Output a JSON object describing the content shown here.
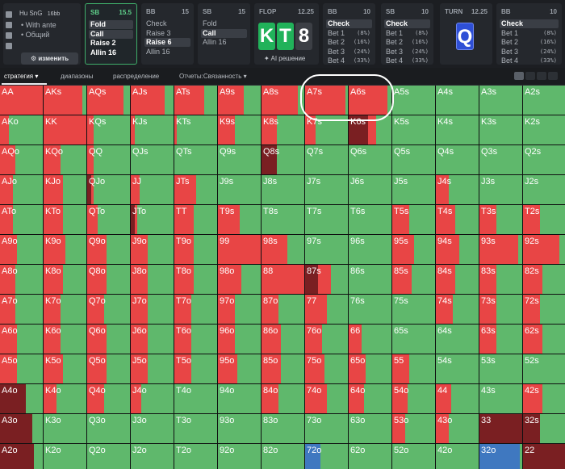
{
  "colors": {
    "raise": "#e84545",
    "call": "#5fb86c",
    "fold": "#7a1f22",
    "check": "#5fb86c",
    "special": "#3f78c0",
    "flop_card_green": "#21b25a",
    "flop_card_gray": "#3c3f45",
    "turn_card_blue": "#2e4fd6",
    "annotation": "#ffffff"
  },
  "info_panel": {
    "title": "Hu SnG",
    "stack": "16bb",
    "lines": [
      "• With ante",
      "• Общий"
    ],
    "change_label": "изменить",
    "icons": [
      "copy-icon",
      "history-icon",
      "save-icon",
      "font-icon"
    ]
  },
  "action_panels": [
    {
      "pos": "SB",
      "stack": "15.5",
      "active": true,
      "options": [
        {
          "label": "Fold",
          "selected": true,
          "pct": ""
        },
        {
          "label": "Call",
          "selected": true,
          "pct": ""
        },
        {
          "label": "Raise 2",
          "selected": false,
          "pct": ""
        },
        {
          "label": "Allin 16",
          "selected": false,
          "pct": ""
        }
      ]
    },
    {
      "pos": "BB",
      "stack": "15",
      "active": false,
      "options": [
        {
          "label": "Check",
          "selected": false,
          "pct": ""
        },
        {
          "label": "Raise 3",
          "selected": false,
          "pct": ""
        },
        {
          "label": "Raise 6",
          "selected": true,
          "pct": ""
        },
        {
          "label": "Allin 16",
          "selected": false,
          "pct": ""
        }
      ]
    },
    {
      "pos": "SB",
      "stack": "15",
      "active": false,
      "options": [
        {
          "label": "Fold",
          "selected": false,
          "pct": ""
        },
        {
          "label": "Call",
          "selected": true,
          "pct": ""
        },
        {
          "label": "Allin 16",
          "selected": false,
          "pct": ""
        }
      ]
    },
    {
      "pos": "BB",
      "stack": "10",
      "active": false,
      "options": [
        {
          "label": "Check",
          "selected": true,
          "pct": ""
        },
        {
          "label": "Bet 1",
          "selected": false,
          "pct": "(8%)"
        },
        {
          "label": "Bet 2",
          "selected": false,
          "pct": "(16%)"
        },
        {
          "label": "Bet 3",
          "selected": false,
          "pct": "(24%)"
        },
        {
          "label": "Bet 4",
          "selected": false,
          "pct": "(33%)"
        }
      ]
    },
    {
      "pos": "SB",
      "stack": "10",
      "active": false,
      "options": [
        {
          "label": "Check",
          "selected": true,
          "pct": ""
        },
        {
          "label": "Bet 1",
          "selected": false,
          "pct": "(8%)"
        },
        {
          "label": "Bet 2",
          "selected": false,
          "pct": "(16%)"
        },
        {
          "label": "Bet 3",
          "selected": false,
          "pct": "(24%)"
        },
        {
          "label": "Bet 4",
          "selected": false,
          "pct": "(33%)"
        }
      ]
    },
    {
      "pos": "BB",
      "stack": "10",
      "active": false,
      "options": [
        {
          "label": "Check",
          "selected": true,
          "pct": ""
        },
        {
          "label": "Bet 1",
          "selected": false,
          "pct": "(8%)"
        },
        {
          "label": "Bet 2",
          "selected": false,
          "pct": "(16%)"
        },
        {
          "label": "Bet 3",
          "selected": false,
          "pct": "(24%)"
        },
        {
          "label": "Bet 4",
          "selected": false,
          "pct": "(33%)"
        }
      ]
    }
  ],
  "flop": {
    "label": "FLOP",
    "pot": "12.25",
    "cards": [
      "K",
      "T",
      "8"
    ],
    "ai_label": "AI решение"
  },
  "turn": {
    "label": "TURN",
    "pot": "12.25",
    "card": "Q"
  },
  "tabs": [
    "стратегия",
    "диапазоны",
    "распределение",
    "Отчеты:Связанность"
  ],
  "view_buttons": [
    "grid-view-icon",
    "list-view-icon",
    "table-view-icon",
    "expand-icon"
  ],
  "grid": {
    "cells": [
      [
        "AA",
        "AKs",
        "AQs",
        "AJs",
        "ATs",
        "A9s",
        "A8s",
        "A7s",
        "A6s",
        "A5s",
        "A4s",
        "A3s",
        "A2s"
      ],
      [
        "AKo",
        "KK",
        "KQs",
        "KJs",
        "KTs",
        "K9s",
        "K8s",
        "K7s",
        "K6s",
        "K5s",
        "K4s",
        "K3s",
        "K2s"
      ],
      [
        "AQo",
        "KQo",
        "QQ",
        "QJs",
        "QTs",
        "Q9s",
        "Q8s",
        "Q7s",
        "Q6s",
        "Q5s",
        "Q4s",
        "Q3s",
        "Q2s"
      ],
      [
        "AJo",
        "KJo",
        "QJo",
        "JJ",
        "JTs",
        "J9s",
        "J8s",
        "J7s",
        "J6s",
        "J5s",
        "J4s",
        "J3s",
        "J2s"
      ],
      [
        "ATo",
        "KTo",
        "QTo",
        "JTo",
        "TT",
        "T9s",
        "T8s",
        "T7s",
        "T6s",
        "T5s",
        "T4s",
        "T3s",
        "T2s"
      ],
      [
        "A9o",
        "K9o",
        "Q9o",
        "J9o",
        "T9o",
        "99",
        "98s",
        "97s",
        "96s",
        "95s",
        "94s",
        "93s",
        "92s"
      ],
      [
        "A8o",
        "K8o",
        "Q8o",
        "J8o",
        "T8o",
        "98o",
        "88",
        "87s",
        "86s",
        "85s",
        "84s",
        "83s",
        "82s"
      ],
      [
        "A7o",
        "K7o",
        "Q7o",
        "J7o",
        "T7o",
        "97o",
        "87o",
        "77",
        "76s",
        "75s",
        "74s",
        "73s",
        "72s"
      ],
      [
        "A6o",
        "K6o",
        "Q6o",
        "J6o",
        "T6o",
        "96o",
        "86o",
        "76o",
        "66",
        "65s",
        "64s",
        "63s",
        "62s"
      ],
      [
        "A5o",
        "K5o",
        "Q5o",
        "J5o",
        "T5o",
        "95o",
        "85o",
        "75o",
        "65o",
        "55",
        "54s",
        "53s",
        "52s"
      ],
      [
        "A4o",
        "K4o",
        "Q4o",
        "J4o",
        "T4o",
        "94o",
        "84o",
        "74o",
        "64o",
        "54o",
        "44",
        "43s",
        "42s"
      ],
      [
        "A3o",
        "K3o",
        "Q3o",
        "J3o",
        "T3o",
        "93o",
        "83o",
        "73o",
        "63o",
        "53o",
        "43o",
        "33",
        "32s"
      ],
      [
        "A2o",
        "K2o",
        "Q2o",
        "J2o",
        "T2o",
        "92o",
        "82o",
        "72o",
        "62o",
        "52o",
        "42o",
        "32o",
        "22"
      ]
    ],
    "mix": [
      [
        [
          1,
          0,
          0,
          0
        ],
        [
          0.9,
          0,
          0,
          0
        ],
        [
          0.85,
          0,
          0,
          0
        ],
        [
          0.8,
          0,
          0,
          0
        ],
        [
          0.7,
          0,
          0,
          0
        ],
        [
          0.6,
          0,
          0,
          0
        ],
        [
          0.85,
          0,
          0,
          0
        ],
        [
          0.95,
          0,
          0,
          0
        ],
        [
          0.9,
          0,
          0,
          0
        ],
        [
          0,
          0,
          0,
          0
        ],
        [
          0,
          0,
          0,
          0
        ],
        [
          0,
          0,
          0,
          0
        ],
        [
          0,
          0,
          0,
          0
        ]
      ],
      [
        [
          0.2,
          0,
          0,
          0
        ],
        [
          1,
          0,
          0,
          0
        ],
        [
          0.15,
          0,
          0,
          0
        ],
        [
          0.1,
          0,
          0,
          0
        ],
        [
          0.05,
          0,
          0,
          0
        ],
        [
          0.4,
          0,
          0,
          0
        ],
        [
          0.35,
          0,
          0,
          0
        ],
        [
          0.25,
          0,
          0,
          0
        ],
        [
          0.2,
          0.45,
          0,
          0
        ],
        [
          0,
          0,
          0,
          0
        ],
        [
          0,
          0,
          0,
          0
        ],
        [
          0,
          0,
          0,
          0
        ],
        [
          0,
          0,
          0,
          0
        ]
      ],
      [
        [
          0.35,
          0,
          0,
          0
        ],
        [
          0.4,
          0,
          0,
          0
        ],
        [
          0.15,
          0,
          0,
          0
        ],
        [
          0,
          0,
          0,
          0
        ],
        [
          0,
          0,
          0,
          0
        ],
        [
          0,
          0,
          0,
          0
        ],
        [
          0,
          0.35,
          0,
          0
        ],
        [
          0,
          0,
          0,
          0
        ],
        [
          0,
          0,
          0,
          0
        ],
        [
          0,
          0,
          0,
          0
        ],
        [
          0,
          0,
          0,
          0
        ],
        [
          0,
          0,
          0,
          0
        ],
        [
          0,
          0,
          0,
          0
        ]
      ],
      [
        [
          0.3,
          0,
          0,
          0
        ],
        [
          0.45,
          0,
          0,
          0
        ],
        [
          0.05,
          0.1,
          0,
          0
        ],
        [
          0.2,
          0,
          0,
          0
        ],
        [
          0.5,
          0,
          0,
          0
        ],
        [
          0,
          0,
          0,
          0
        ],
        [
          0,
          0,
          0,
          0
        ],
        [
          0,
          0,
          0,
          0
        ],
        [
          0,
          0,
          0,
          0
        ],
        [
          0,
          0,
          0,
          0
        ],
        [
          0.3,
          0,
          0,
          0
        ],
        [
          0,
          0,
          0,
          0
        ],
        [
          0,
          0,
          0,
          0
        ]
      ],
      [
        [
          0.3,
          0,
          0,
          0
        ],
        [
          0.45,
          0,
          0,
          0
        ],
        [
          0.25,
          0,
          0,
          0
        ],
        [
          0.05,
          0.1,
          0,
          0
        ],
        [
          0.45,
          0,
          0,
          0
        ],
        [
          0.5,
          0,
          0,
          0
        ],
        [
          0,
          0,
          0,
          0
        ],
        [
          0,
          0,
          0,
          0
        ],
        [
          0,
          0,
          0,
          0
        ],
        [
          0.4,
          0,
          0,
          0
        ],
        [
          0.45,
          0,
          0,
          0
        ],
        [
          0.4,
          0,
          0,
          0
        ],
        [
          0.4,
          0,
          0,
          0
        ]
      ],
      [
        [
          0.4,
          0,
          0,
          0
        ],
        [
          0.5,
          0,
          0,
          0
        ],
        [
          0.45,
          0,
          0,
          0
        ],
        [
          0.4,
          0,
          0,
          0
        ],
        [
          0.45,
          0,
          0,
          0
        ],
        [
          1,
          0,
          0,
          0
        ],
        [
          0.6,
          0,
          0,
          0
        ],
        [
          0,
          0,
          0,
          0
        ],
        [
          0,
          0,
          0,
          0
        ],
        [
          0.5,
          0,
          0,
          0
        ],
        [
          0.55,
          0,
          0,
          0
        ],
        [
          0.9,
          0,
          0,
          0
        ],
        [
          0.85,
          0,
          0,
          0
        ]
      ],
      [
        [
          0.35,
          0,
          0,
          0
        ],
        [
          0.45,
          0,
          0,
          0
        ],
        [
          0.45,
          0,
          0,
          0
        ],
        [
          0.4,
          0,
          0,
          0
        ],
        [
          0.45,
          0,
          0,
          0
        ],
        [
          0.55,
          0,
          0,
          0
        ],
        [
          1,
          0,
          0,
          0
        ],
        [
          0.3,
          0.3,
          0,
          0
        ],
        [
          0,
          0,
          0,
          0
        ],
        [
          0.45,
          0,
          0,
          0
        ],
        [
          0.45,
          0,
          0,
          0
        ],
        [
          0.4,
          0,
          0,
          0
        ],
        [
          0.45,
          0,
          0,
          0
        ]
      ],
      [
        [
          0.35,
          0,
          0,
          0
        ],
        [
          0.4,
          0,
          0,
          0
        ],
        [
          0.4,
          0,
          0,
          0
        ],
        [
          0.4,
          0,
          0,
          0
        ],
        [
          0.4,
          0,
          0,
          0
        ],
        [
          0.4,
          0,
          0,
          0
        ],
        [
          0.4,
          0,
          0,
          0
        ],
        [
          0.5,
          0,
          0,
          0
        ],
        [
          0,
          0,
          0,
          0
        ],
        [
          0,
          0,
          0,
          0
        ],
        [
          0.4,
          0,
          0,
          0
        ],
        [
          0.4,
          0,
          0,
          0
        ],
        [
          0.4,
          0,
          0,
          0
        ]
      ],
      [
        [
          0.4,
          0,
          0,
          0
        ],
        [
          0.4,
          0,
          0,
          0
        ],
        [
          0.45,
          0,
          0,
          0
        ],
        [
          0.4,
          0,
          0,
          0
        ],
        [
          0.4,
          0,
          0,
          0
        ],
        [
          0.4,
          0,
          0,
          0
        ],
        [
          0.45,
          0,
          0,
          0
        ],
        [
          0.4,
          0,
          0,
          0
        ],
        [
          0.3,
          0,
          0,
          0
        ],
        [
          0,
          0,
          0,
          0
        ],
        [
          0,
          0,
          0,
          0
        ],
        [
          0.4,
          0,
          0,
          0
        ],
        [
          0.45,
          0,
          0,
          0
        ]
      ],
      [
        [
          0.4,
          0,
          0,
          0
        ],
        [
          0.45,
          0,
          0,
          0
        ],
        [
          0.45,
          0,
          0,
          0
        ],
        [
          0.4,
          0,
          0,
          0
        ],
        [
          0.4,
          0,
          0,
          0
        ],
        [
          0.45,
          0,
          0,
          0
        ],
        [
          0.45,
          0,
          0,
          0
        ],
        [
          0.45,
          0,
          0,
          0
        ],
        [
          0.4,
          0,
          0,
          0
        ],
        [
          0.4,
          0,
          0,
          0
        ],
        [
          0,
          0,
          0,
          0
        ],
        [
          0,
          0,
          0,
          0
        ],
        [
          0,
          0,
          0,
          0
        ]
      ],
      [
        [
          0,
          0.6,
          0,
          0
        ],
        [
          0.3,
          0,
          0,
          0
        ],
        [
          0.4,
          0,
          0,
          0
        ],
        [
          0.25,
          0,
          0,
          0
        ],
        [
          0,
          0,
          0,
          0
        ],
        [
          0,
          0,
          0,
          0
        ],
        [
          0.4,
          0,
          0,
          0
        ],
        [
          0.5,
          0,
          0,
          0
        ],
        [
          0.35,
          0,
          0,
          0
        ],
        [
          0.35,
          0,
          0,
          0
        ],
        [
          0.35,
          0,
          0,
          0
        ],
        [
          0,
          0,
          0,
          0
        ],
        [
          0.45,
          0,
          0,
          0
        ]
      ],
      [
        [
          0,
          0.75,
          0,
          0
        ],
        [
          0,
          0,
          0,
          0
        ],
        [
          0,
          0,
          0,
          0
        ],
        [
          0,
          0,
          0,
          0
        ],
        [
          0,
          0,
          0,
          0
        ],
        [
          0,
          0,
          0,
          0
        ],
        [
          0,
          0,
          0,
          0
        ],
        [
          0,
          0,
          0,
          0
        ],
        [
          0,
          0,
          0,
          0
        ],
        [
          0.3,
          0,
          0,
          0
        ],
        [
          0.3,
          0,
          0,
          0
        ],
        [
          0,
          1,
          0,
          0
        ],
        [
          0,
          0.4,
          0,
          0
        ]
      ],
      [
        [
          0,
          0.8,
          0,
          0
        ],
        [
          0,
          0,
          0,
          0
        ],
        [
          0,
          0,
          0,
          0
        ],
        [
          0,
          0,
          0,
          0
        ],
        [
          0,
          0,
          0,
          0
        ],
        [
          0,
          0,
          0,
          0
        ],
        [
          0,
          0,
          0,
          0
        ],
        [
          0,
          0,
          0.35,
          0
        ],
        [
          0,
          0,
          0,
          0
        ],
        [
          0,
          0,
          0,
          0
        ],
        [
          0,
          0,
          0,
          0
        ],
        [
          0,
          0,
          0.95,
          0
        ],
        [
          0,
          1,
          0,
          0
        ]
      ]
    ]
  }
}
